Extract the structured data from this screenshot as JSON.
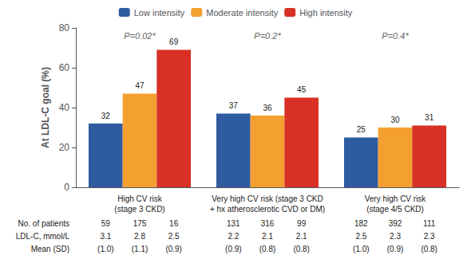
{
  "chart_data": {
    "type": "bar",
    "categories": [
      "High CV risk\n(stage 3 CKD)",
      "Very high CV risk (stage 3 CKD\n+ hx atherosclerotic CVD or DM)",
      "Very high CV risk\n(stage 4/5 CKD)"
    ],
    "series": [
      {
        "name": "Low intensity",
        "color": "#2F5BA1",
        "values": [
          32,
          37,
          25
        ]
      },
      {
        "name": "Moderate intensity",
        "color": "#F4A030",
        "values": [
          47,
          36,
          30
        ]
      },
      {
        "name": "High intensity",
        "color": "#D93025",
        "values": [
          69,
          45,
          31
        ]
      }
    ],
    "ylabel": "At LDL-C goal (%)",
    "ylim": [
      0,
      80
    ],
    "yticks": [
      0,
      20,
      40,
      60,
      80
    ],
    "grid": false,
    "legend": "top",
    "data_labels": true,
    "annotations": [
      {
        "x": "High CV risk\n(stage 3 CKD)",
        "y": 72,
        "text": "P=0.02*"
      },
      {
        "x": "Very high CV risk (stage 3 CKD\n+ hx atherosclerotic CVD or DM)",
        "y": 72,
        "text": "P=0.2*"
      },
      {
        "x": "Very high CV risk\n(stage 4/5 CKD)",
        "y": 72,
        "text": "P=0.4*"
      }
    ],
    "table": {
      "rows": [
        {
          "label": "No. of patients",
          "values": [
            "59",
            "175",
            "16",
            "131",
            "316",
            "99",
            "182",
            "392",
            "111"
          ]
        },
        {
          "label": "LDL-C, mmol/L",
          "values": [
            "3.1",
            "2.8",
            "2.5",
            "2.2",
            "2.1",
            "2.1",
            "2.5",
            "2.3",
            "2.3"
          ]
        },
        {
          "label": "Mean (SD)",
          "values": [
            "(1.0)",
            "(1.1)",
            "(0.9)",
            "(0.9)",
            "(0.8)",
            "(0.8)",
            "(1.0)",
            "(0.9)",
            "(0.8)"
          ]
        }
      ]
    }
  }
}
